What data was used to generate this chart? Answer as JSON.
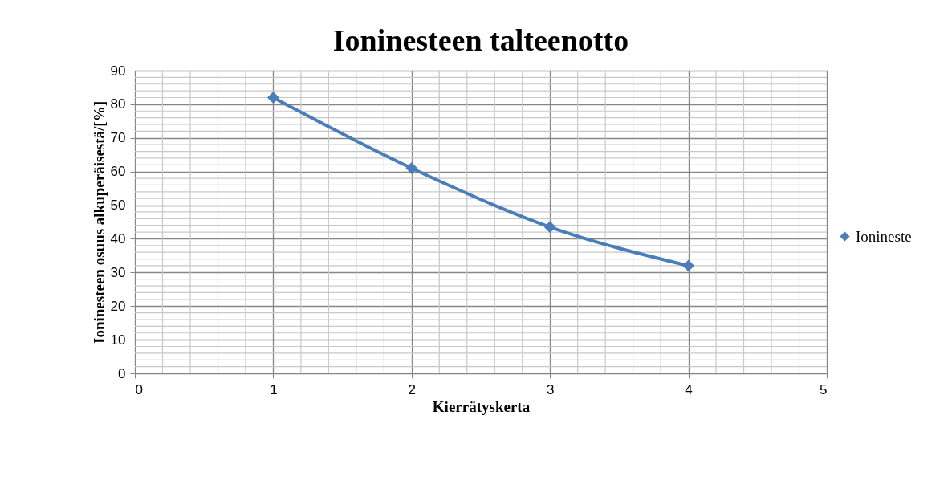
{
  "chart_data": {
    "type": "line",
    "title": "Ioninesteen talteenotto",
    "xlabel": "Kierrätyskerta",
    "ylabel": "Ioninesteen osuus alkuperäisestä/[%]",
    "x": [
      1,
      2,
      3,
      4
    ],
    "series": [
      {
        "name": "Ionineste",
        "color": "#4a7ebb",
        "values": [
          82,
          61,
          43.5,
          32
        ]
      }
    ],
    "xlim": [
      0,
      5
    ],
    "xticks": [
      0,
      {
        "value": 0.2,
        "label": null
      },
      {
        "value": 0.4,
        "label": null
      },
      {
        "value": 0.6,
        "label": null
      },
      {
        "value": 0.8,
        "label": null
      },
      1,
      {
        "value": 1.2,
        "label": null
      },
      {
        "value": 1.4,
        "label": null
      },
      {
        "value": 1.6,
        "label": null
      },
      {
        "value": 1.8,
        "label": null
      },
      2,
      {
        "value": 2.2,
        "label": null
      },
      {
        "value": 2.4,
        "label": null
      },
      {
        "value": 2.6,
        "label": null
      },
      {
        "value": 2.8,
        "label": null
      },
      3,
      {
        "value": 3.2,
        "label": null
      },
      {
        "value": 3.4,
        "label": null
      },
      {
        "value": 3.6,
        "label": null
      },
      {
        "value": 3.8,
        "label": null
      },
      4,
      {
        "value": 4.2,
        "label": null
      },
      {
        "value": 4.4,
        "label": null
      },
      {
        "value": 4.6,
        "label": null
      },
      {
        "value": 4.8,
        "label": null
      },
      5
    ],
    "ylim": [
      0,
      90
    ],
    "yticks": [
      0,
      {
        "value": 2,
        "label": null
      },
      {
        "value": 4,
        "label": null
      },
      {
        "value": 6,
        "label": null
      },
      {
        "value": 8,
        "label": null
      },
      10,
      {
        "value": 12,
        "label": null
      },
      {
        "value": 14,
        "label": null
      },
      {
        "value": 16,
        "label": null
      },
      {
        "value": 18,
        "label": null
      },
      20,
      {
        "value": 22,
        "label": null
      },
      {
        "value": 24,
        "label": null
      },
      {
        "value": 26,
        "label": null
      },
      {
        "value": 28,
        "label": null
      },
      30,
      {
        "value": 32,
        "label": null
      },
      {
        "value": 34,
        "label": null
      },
      {
        "value": 36,
        "label": null
      },
      {
        "value": 38,
        "label": null
      },
      40,
      {
        "value": 42,
        "label": null
      },
      {
        "value": 44,
        "label": null
      },
      {
        "value": 46,
        "label": null
      },
      {
        "value": 48,
        "label": null
      },
      50,
      {
        "value": 52,
        "label": null
      },
      {
        "value": 54,
        "label": null
      },
      {
        "value": 56,
        "label": null
      },
      {
        "value": 58,
        "label": null
      },
      60,
      {
        "value": 62,
        "label": null
      },
      {
        "value": 64,
        "label": null
      },
      {
        "value": 66,
        "label": null
      },
      {
        "value": 68,
        "label": null
      },
      70,
      {
        "value": 72,
        "label": null
      },
      {
        "value": 74,
        "label": null
      },
      {
        "value": 76,
        "label": null
      },
      {
        "value": 78,
        "label": null
      },
      80,
      {
        "value": 82,
        "label": null
      },
      {
        "value": 84,
        "label": null
      },
      {
        "value": 86,
        "label": null
      },
      {
        "value": 88,
        "label": null
      },
      90
    ],
    "grid": true,
    "legend": "right",
    "marker": "diamond",
    "line_style": "solid"
  }
}
